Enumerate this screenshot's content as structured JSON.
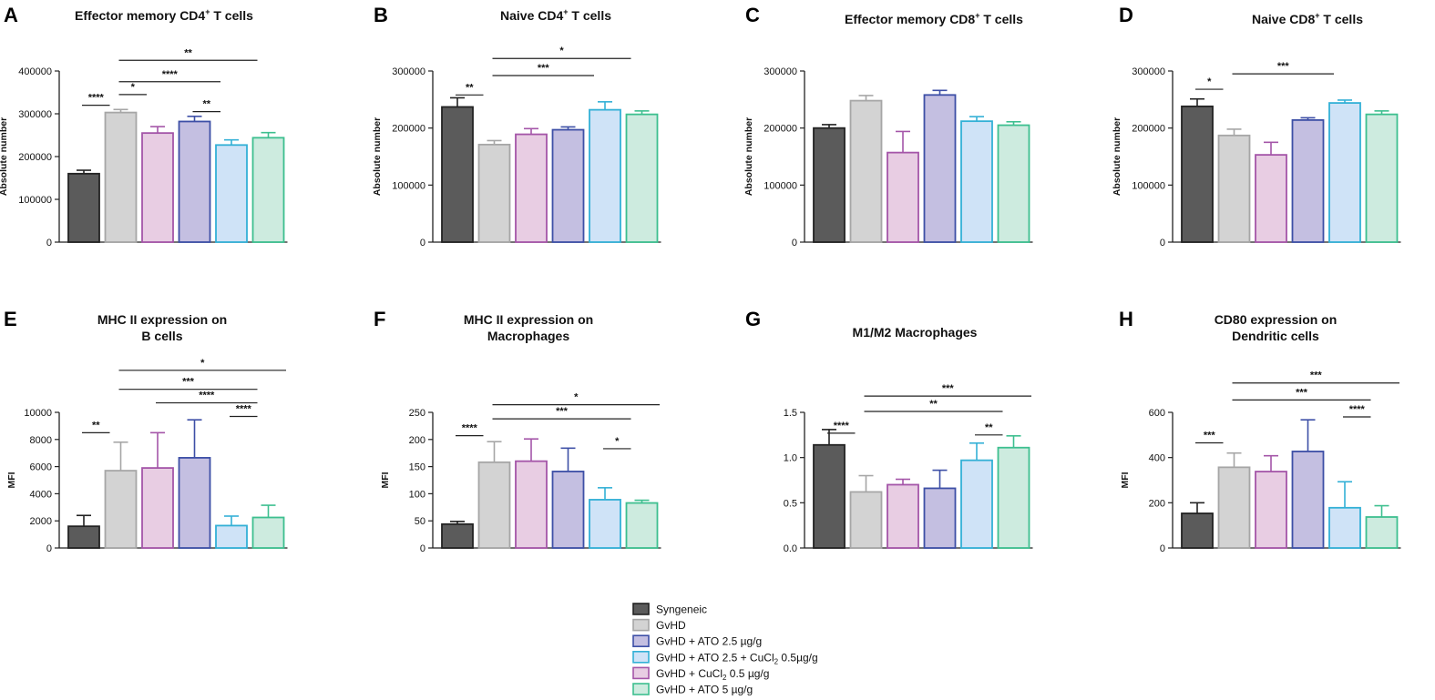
{
  "legend": [
    {
      "key": "syn",
      "label": "Syngeneic"
    },
    {
      "key": "gvhd",
      "label": "GvHD"
    },
    {
      "key": "ato25",
      "label": "GvHD + ATO 2.5 µg/g"
    },
    {
      "key": "cu",
      "label_parts": [
        "GvHD + ATO 2.5 + CuCl",
        "2",
        " 0.5µg/g"
      ]
    },
    {
      "key": "cucl",
      "label_parts": [
        "GvHD + CuCl",
        "2",
        " 0.5 µg/g"
      ]
    },
    {
      "key": "ato5",
      "label": "GvHD + ATO 5 µg/g"
    }
  ],
  "colors": {
    "syn": {
      "fill": "#5b5b5b",
      "stroke": "#222222"
    },
    "gvhd": {
      "fill": "#d3d3d3",
      "stroke": "#a6a6a6"
    },
    "cucl": {
      "fill": "#e8cde3",
      "stroke": "#a455a8"
    },
    "ato25": {
      "fill": "#c4bfe1",
      "stroke": "#3d4fa6"
    },
    "cu": {
      "fill": "#cfe3f7",
      "stroke": "#33b0d6"
    },
    "ato5": {
      "fill": "#cdebdf",
      "stroke": "#3dbf8f"
    }
  },
  "chart_data": [
    {
      "panel": "A",
      "type": "bar",
      "title_parts": [
        "Effector memory CD4",
        "+",
        " T cells"
      ],
      "ylabel": "Absolute number",
      "ylim": [
        0,
        400000
      ],
      "yticks": [
        0,
        100000,
        200000,
        300000,
        400000
      ],
      "ytick_labels": [
        "0",
        "100000",
        "200000",
        "300000",
        "400000"
      ],
      "categories": [
        "syn",
        "gvhd",
        "cucl",
        "ato25",
        "cu",
        "ato5"
      ],
      "values": [
        160000,
        303000,
        255000,
        282000,
        227000,
        244000
      ],
      "errors": [
        8000,
        7000,
        15000,
        12000,
        12000,
        12000
      ],
      "significance": [
        {
          "from": 0,
          "to": 1,
          "label": "****",
          "level": 320000
        },
        {
          "from": 1,
          "to": 2,
          "label": "*",
          "level": 345000
        },
        {
          "from": 3,
          "to": 4,
          "label": "**",
          "level": 305000
        },
        {
          "from": 1,
          "to": 4,
          "label": "****",
          "level": 375000
        },
        {
          "from": 1,
          "to": 5,
          "label": "**",
          "level": 425000
        }
      ]
    },
    {
      "panel": "B",
      "type": "bar",
      "title_parts": [
        "Naive CD4",
        "+",
        " T cells"
      ],
      "ylabel": "Absolute number",
      "ylim": [
        0,
        300000
      ],
      "yticks": [
        0,
        100000,
        200000,
        300000
      ],
      "ytick_labels": [
        "0",
        "100000",
        "200000",
        "300000"
      ],
      "categories": [
        "syn",
        "gvhd",
        "cucl",
        "ato25",
        "cu",
        "ato5"
      ],
      "values": [
        237000,
        171000,
        189000,
        197000,
        232000,
        224000
      ],
      "errors": [
        16000,
        7000,
        10000,
        5000,
        14000,
        6000
      ],
      "significance": [
        {
          "from": 0,
          "to": 1,
          "label": "**",
          "level": 258000
        },
        {
          "from": 1,
          "to": 4,
          "label": "***",
          "level": 292000
        },
        {
          "from": 1,
          "to": 5,
          "label": "*",
          "level": 322000
        }
      ]
    },
    {
      "panel": "C",
      "type": "bar",
      "title_parts": [
        "Effector memory CD8",
        "+",
        " T cells"
      ],
      "ylabel": "Absolute number",
      "ylim": [
        0,
        300000
      ],
      "yticks": [
        0,
        100000,
        200000,
        300000
      ],
      "ytick_labels": [
        "0",
        "100000",
        "200000",
        "300000"
      ],
      "categories": [
        "syn",
        "gvhd",
        "cucl",
        "ato25",
        "cu",
        "ato5"
      ],
      "values": [
        200000,
        248000,
        157000,
        258000,
        212000,
        205000
      ],
      "errors": [
        6000,
        9000,
        37000,
        8000,
        8000,
        6000
      ],
      "significance": []
    },
    {
      "panel": "D",
      "type": "bar",
      "title_parts": [
        "Naive CD8",
        "+",
        " T cells"
      ],
      "ylabel": "Absolute number",
      "ylim": [
        0,
        300000
      ],
      "yticks": [
        0,
        100000,
        200000,
        300000
      ],
      "ytick_labels": [
        "0",
        "100000",
        "200000",
        "300000"
      ],
      "categories": [
        "syn",
        "gvhd",
        "cucl",
        "ato25",
        "cu",
        "ato5"
      ],
      "values": [
        238000,
        187000,
        153000,
        214000,
        244000,
        224000
      ],
      "errors": [
        13000,
        11000,
        22000,
        4000,
        5000,
        6000
      ],
      "significance": [
        {
          "from": 0,
          "to": 1,
          "label": "*",
          "level": 268000
        },
        {
          "from": 1,
          "to": 4,
          "label": "***",
          "level": 295000
        }
      ]
    },
    {
      "panel": "E",
      "type": "bar",
      "title_lines": [
        "MHC II expression on",
        "B cells"
      ],
      "ylabel": "MFI",
      "ylim": [
        0,
        10000
      ],
      "yticks": [
        0,
        2000,
        4000,
        6000,
        8000,
        10000
      ],
      "ytick_labels": [
        "0",
        "2000",
        "4000",
        "6000",
        "8000",
        "10000"
      ],
      "categories": [
        "syn",
        "gvhd",
        "cucl",
        "ato25",
        "cu",
        "ato5"
      ],
      "values": [
        1600,
        5700,
        5900,
        6650,
        1650,
        2250
      ],
      "errors": [
        800,
        2100,
        2600,
        2800,
        700,
        900
      ],
      "significance": [
        {
          "from": 0,
          "to": 1,
          "label": "**",
          "level": 8500
        },
        {
          "from": 4,
          "to": 5,
          "label": "****",
          "level": 9700
        },
        {
          "from": 2,
          "to": 5,
          "label": "****",
          "level": 10700
        },
        {
          "from": 1,
          "to": 5,
          "label": "***",
          "level": 11700
        },
        {
          "from": 1,
          "to": 6,
          "label": "*",
          "level": 13100
        }
      ]
    },
    {
      "panel": "F",
      "type": "bar",
      "title_lines": [
        "MHC II expression on",
        "Macrophages"
      ],
      "ylabel": "MFI",
      "ylim": [
        0,
        250
      ],
      "yticks": [
        0,
        50,
        100,
        150,
        200,
        250
      ],
      "ytick_labels": [
        "0",
        "50",
        "100",
        "150",
        "200",
        "250"
      ],
      "categories": [
        "syn",
        "gvhd",
        "cucl",
        "ato25",
        "cu",
        "ato5"
      ],
      "values": [
        44,
        158,
        160,
        141,
        89,
        83
      ],
      "errors": [
        5,
        38,
        41,
        43,
        22,
        5
      ],
      "significance": [
        {
          "from": 0,
          "to": 1,
          "label": "****",
          "level": 207
        },
        {
          "from": 4,
          "to": 5,
          "label": "*",
          "level": 183
        },
        {
          "from": 1,
          "to": 5,
          "label": "***",
          "level": 238
        },
        {
          "from": 1,
          "to": 6,
          "label": "*",
          "level": 264
        }
      ]
    },
    {
      "panel": "G",
      "type": "bar",
      "title_lines": [
        "M1/M2 Macrophages"
      ],
      "ylabel": "",
      "ylim": [
        0,
        1.5
      ],
      "yticks": [
        0,
        0.5,
        1.0,
        1.5
      ],
      "ytick_labels": [
        "0.0",
        "0.5",
        "1.0",
        "1.5"
      ],
      "categories": [
        "syn",
        "gvhd",
        "cucl",
        "ato25",
        "cu",
        "ato5"
      ],
      "values": [
        1.14,
        0.62,
        0.7,
        0.66,
        0.97,
        1.11
      ],
      "errors": [
        0.17,
        0.18,
        0.06,
        0.2,
        0.19,
        0.13
      ],
      "significance": [
        {
          "from": 0,
          "to": 1,
          "label": "****",
          "level": 1.27
        },
        {
          "from": 4,
          "to": 5,
          "label": "**",
          "level": 1.25
        },
        {
          "from": 1,
          "to": 5,
          "label": "**",
          "level": 1.51
        },
        {
          "from": 1,
          "to": 6,
          "label": "***",
          "level": 1.68
        }
      ]
    },
    {
      "panel": "H",
      "type": "bar",
      "title_lines": [
        "CD80 expression on",
        "Dendritic cells"
      ],
      "ylabel": "MFI",
      "ylim": [
        0,
        600
      ],
      "yticks": [
        0,
        200,
        400,
        600
      ],
      "ytick_labels": [
        "0",
        "200",
        "400",
        "600"
      ],
      "categories": [
        "syn",
        "gvhd",
        "cucl",
        "ato25",
        "cu",
        "ato5"
      ],
      "values": [
        153,
        357,
        338,
        427,
        178,
        137
      ],
      "errors": [
        47,
        63,
        70,
        140,
        115,
        50
      ],
      "significance": [
        {
          "from": 0,
          "to": 1,
          "label": "***",
          "level": 465
        },
        {
          "from": 4,
          "to": 5,
          "label": "****",
          "level": 580
        },
        {
          "from": 1,
          "to": 5,
          "label": "***",
          "level": 655
        },
        {
          "from": 1,
          "to": 6,
          "label": "***",
          "level": 730
        }
      ]
    }
  ]
}
